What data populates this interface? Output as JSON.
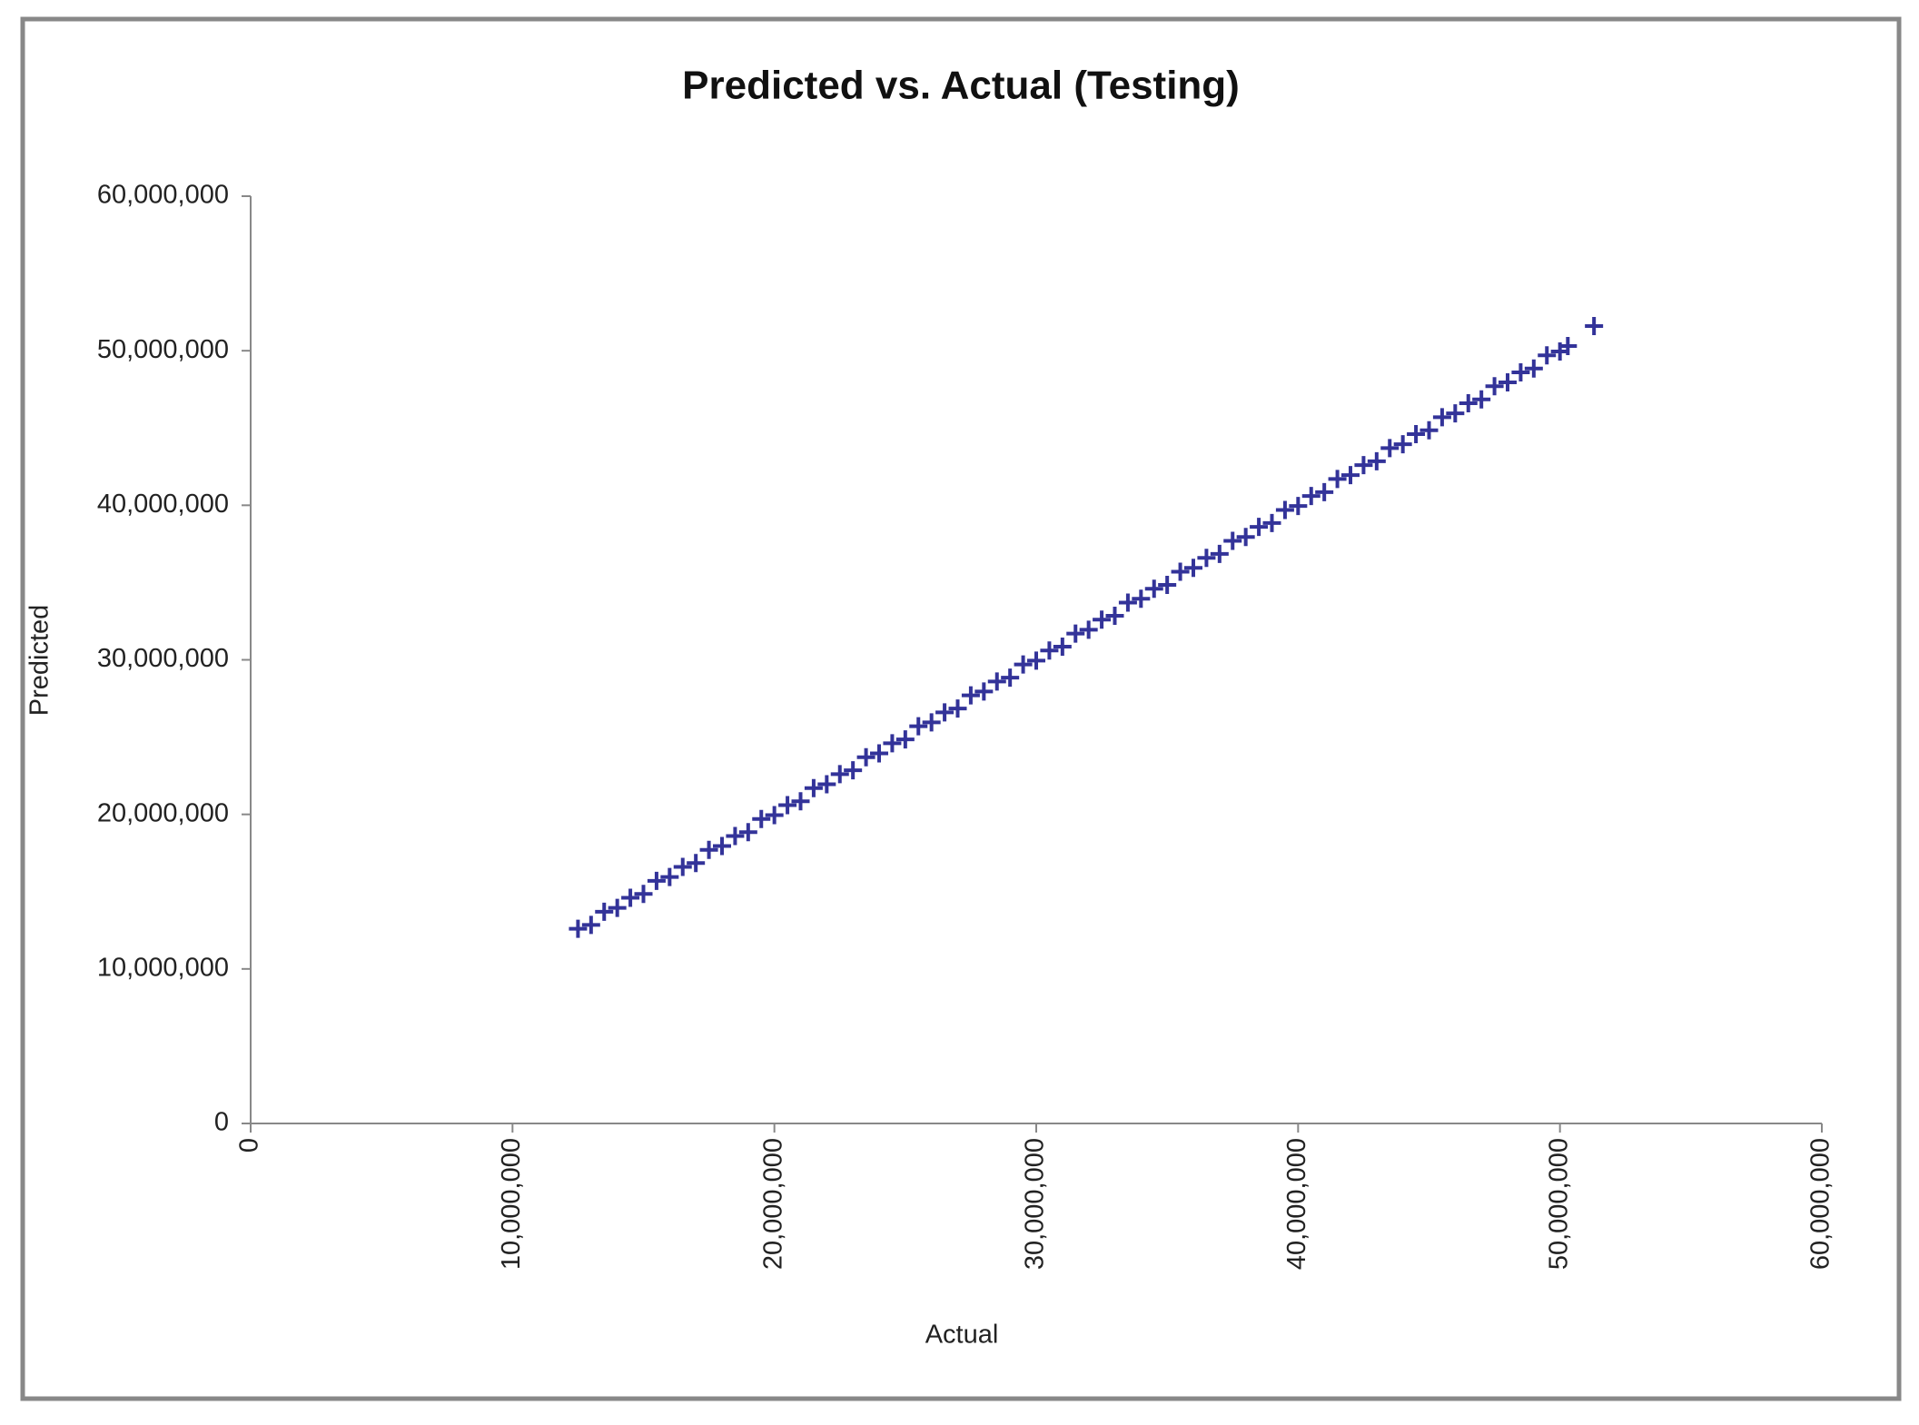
{
  "chart_data": {
    "type": "scatter",
    "title": "Predicted vs. Actual (Testing)",
    "x_label": "Actual",
    "y_label": "Predicted",
    "color": "#333399",
    "marker": "plus",
    "xlim": [
      0,
      60000000
    ],
    "ylim": [
      0,
      60000000
    ],
    "xticks": [
      0,
      {
        "value": 10000000,
        "label": "10,000,000"
      },
      {
        "value": 20000000,
        "label": "20,000,000"
      },
      {
        "value": 30000000,
        "label": "30,000,000"
      },
      {
        "value": 40000000,
        "label": "40,000,000"
      },
      {
        "value": 50000000,
        "label": "50,000,000"
      },
      {
        "value": 60000000,
        "label": "60,000,000"
      }
    ],
    "yticks": [
      0,
      {
        "value": 10000000,
        "label": "10,000,000"
      },
      {
        "value": 20000000,
        "label": "20,000,000"
      },
      {
        "value": 30000000,
        "label": "30,000,000"
      },
      {
        "value": 40000000,
        "label": "40,000,000"
      },
      {
        "value": 50000000,
        "label": "50,000,000"
      },
      {
        "value": 60000000,
        "label": "60,000,000"
      }
    ],
    "grid": false,
    "x": [
      12500000,
      13000000,
      13500000,
      14000000,
      14500000,
      15000000,
      15500000,
      16000000,
      16500000,
      17000000,
      17500000,
      18000000,
      18500000,
      19000000,
      19500000,
      20000000,
      20500000,
      21000000,
      21500000,
      22000000,
      22500000,
      23000000,
      23500000,
      24000000,
      24500000,
      25000000,
      25500000,
      26000000,
      26500000,
      27000000,
      27500000,
      28000000,
      28500000,
      29000000,
      29500000,
      30000000,
      30500000,
      31000000,
      31500000,
      32000000,
      32500000,
      33000000,
      33500000,
      34000000,
      34500000,
      35000000,
      35500000,
      36000000,
      36500000,
      37000000,
      37500000,
      38000000,
      38500000,
      39000000,
      39500000,
      40000000,
      40500000,
      41000000,
      41500000,
      42000000,
      42500000,
      43000000,
      43500000,
      44000000,
      44500000,
      45000000,
      45500000,
      46000000,
      46500000,
      47000000,
      47500000,
      48000000,
      48500000,
      49000000,
      49500000,
      50000000,
      50300000,
      51300000
    ],
    "values": [
      12600000,
      12850000,
      13700000,
      13950000,
      14600000,
      14850000,
      15700000,
      15950000,
      16600000,
      16850000,
      17700000,
      17950000,
      18600000,
      18850000,
      19700000,
      19950000,
      20600000,
      20850000,
      21700000,
      21950000,
      22600000,
      22850000,
      23700000,
      23950000,
      24600000,
      24850000,
      25700000,
      25950000,
      26600000,
      26850000,
      27700000,
      27950000,
      28600000,
      28850000,
      29700000,
      29950000,
      30600000,
      30850000,
      31700000,
      31950000,
      32600000,
      32850000,
      33700000,
      33950000,
      34600000,
      34850000,
      35700000,
      35950000,
      36600000,
      36850000,
      37700000,
      37950000,
      38600000,
      38850000,
      39700000,
      39950000,
      40600000,
      40850000,
      41700000,
      41950000,
      42600000,
      42850000,
      43700000,
      43950000,
      44600000,
      44850000,
      45700000,
      45950000,
      46600000,
      46850000,
      47700000,
      47950000,
      48600000,
      48850000,
      49700000,
      49950000,
      50300000,
      51600000
    ]
  }
}
